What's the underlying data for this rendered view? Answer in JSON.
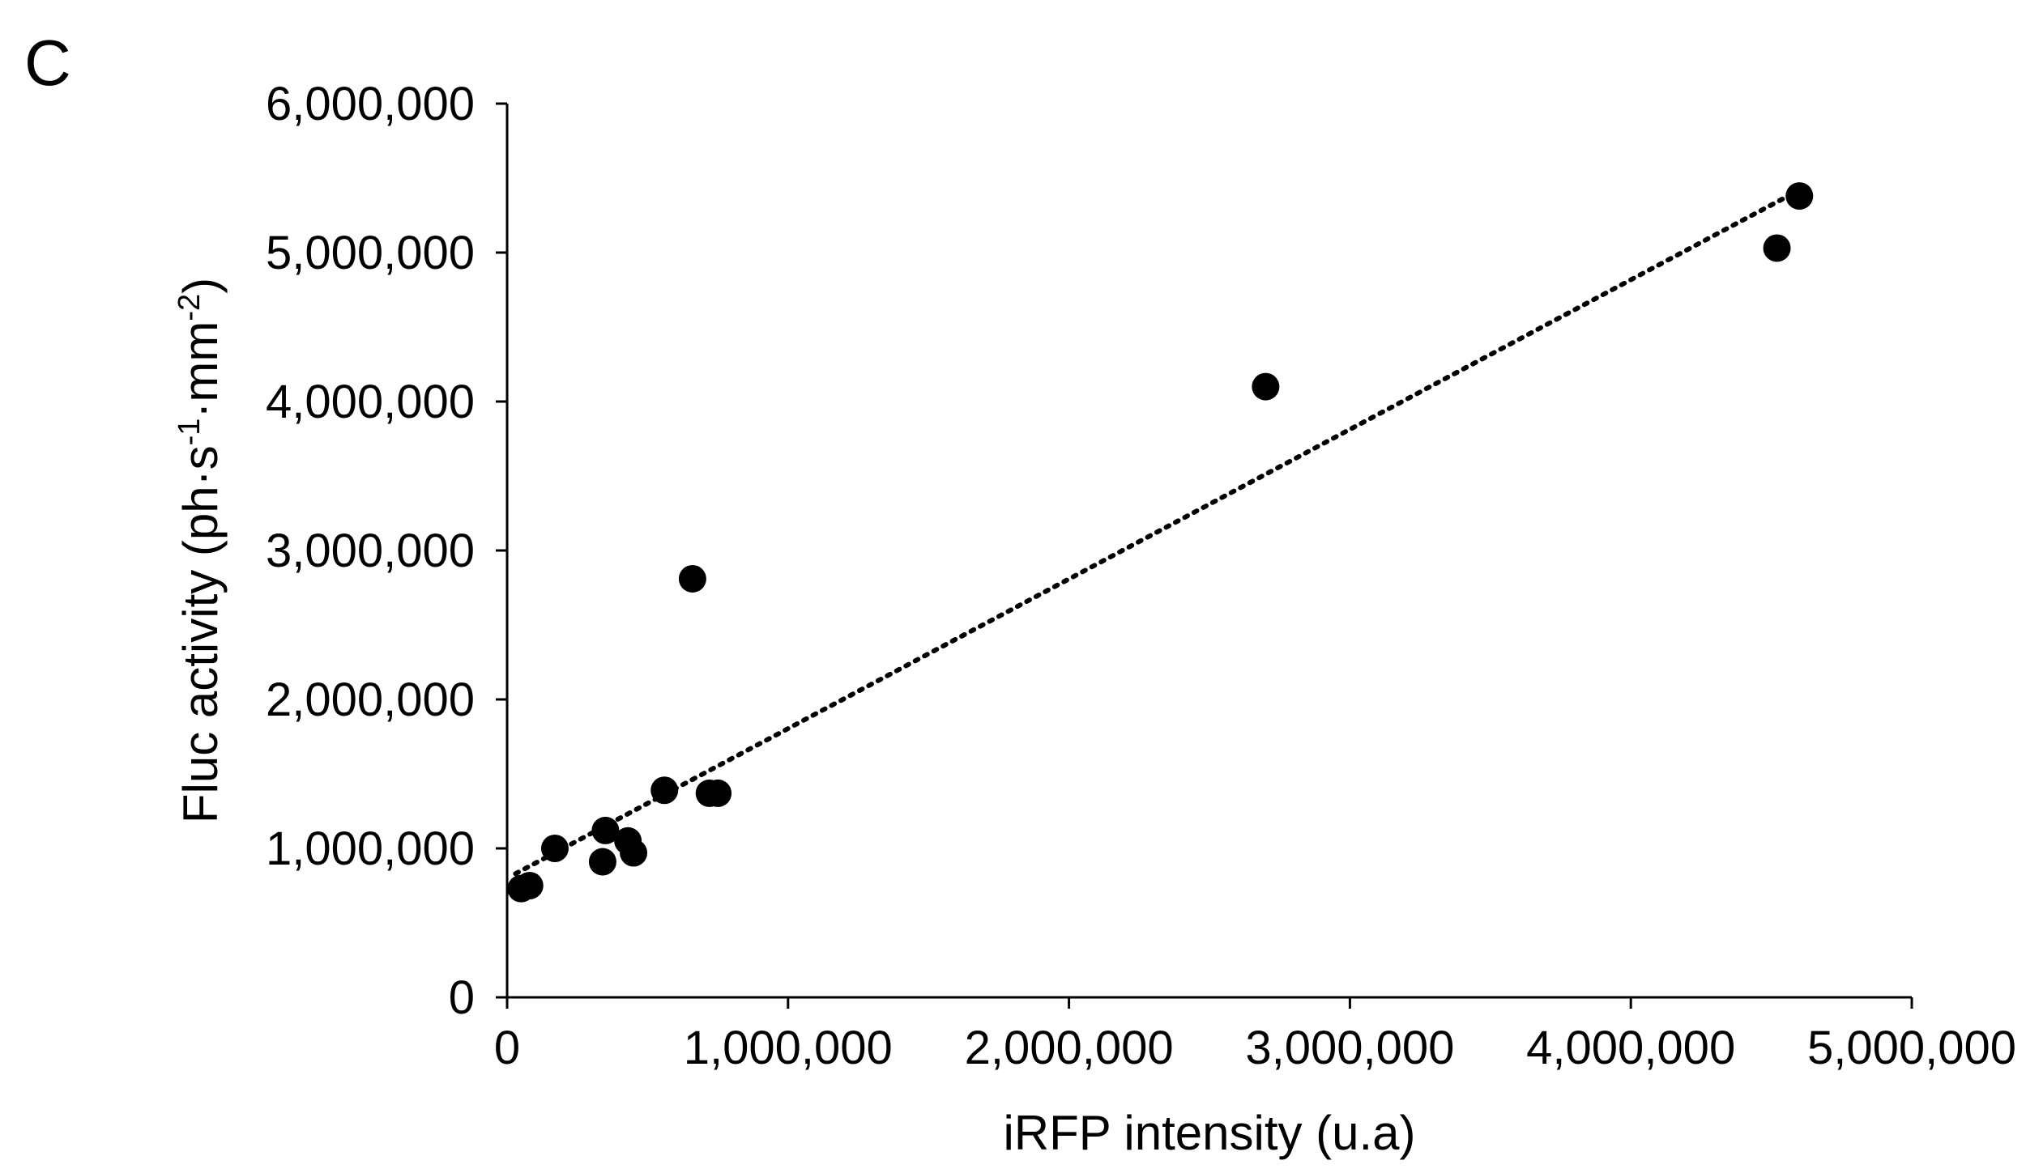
{
  "chart_data": {
    "type": "scatter",
    "panel_label": "C",
    "title": "",
    "xlabel": "iRFP intensity (u.a)",
    "ylabel": {
      "parts": [
        {
          "text": "Fluc activity (ph·s",
          "sup": false
        },
        {
          "text": "-1",
          "sup": true
        },
        {
          "text": "·mm",
          "sup": false
        },
        {
          "text": "-2",
          "sup": true
        },
        {
          "text": ")",
          "sup": false
        }
      ]
    },
    "xlim": [
      0,
      5000000
    ],
    "ylim": [
      0,
      6000000
    ],
    "x_ticks": [
      0,
      1000000,
      2000000,
      3000000,
      4000000,
      5000000
    ],
    "x_tick_labels": [
      "0",
      "1,000,000",
      "2,000,000",
      "3,000,000",
      "4,000,000",
      "5,000,000"
    ],
    "y_ticks": [
      0,
      1000000,
      2000000,
      3000000,
      4000000,
      5000000,
      6000000
    ],
    "y_tick_labels": [
      "0",
      "1,000,000",
      "2,000,000",
      "3,000,000",
      "4,000,000",
      "5,000,000",
      "6,000,000"
    ],
    "grid": false,
    "legend": "none",
    "marker_color": "#000000",
    "points": [
      {
        "x": 50000,
        "y": 730000
      },
      {
        "x": 80000,
        "y": 750000
      },
      {
        "x": 170000,
        "y": 1000000
      },
      {
        "x": 350000,
        "y": 1120000
      },
      {
        "x": 340000,
        "y": 910000
      },
      {
        "x": 430000,
        "y": 1050000
      },
      {
        "x": 450000,
        "y": 970000
      },
      {
        "x": 560000,
        "y": 1390000
      },
      {
        "x": 660000,
        "y": 2810000
      },
      {
        "x": 720000,
        "y": 1370000
      },
      {
        "x": 750000,
        "y": 1370000
      },
      {
        "x": 2700000,
        "y": 4100000
      },
      {
        "x": 4520000,
        "y": 5030000
      },
      {
        "x": 4600000,
        "y": 5380000
      }
    ],
    "trendline": {
      "style": "dotted",
      "x_start": 30000,
      "y_start": 830000,
      "x_end": 4600000,
      "y_end": 5420000
    }
  }
}
